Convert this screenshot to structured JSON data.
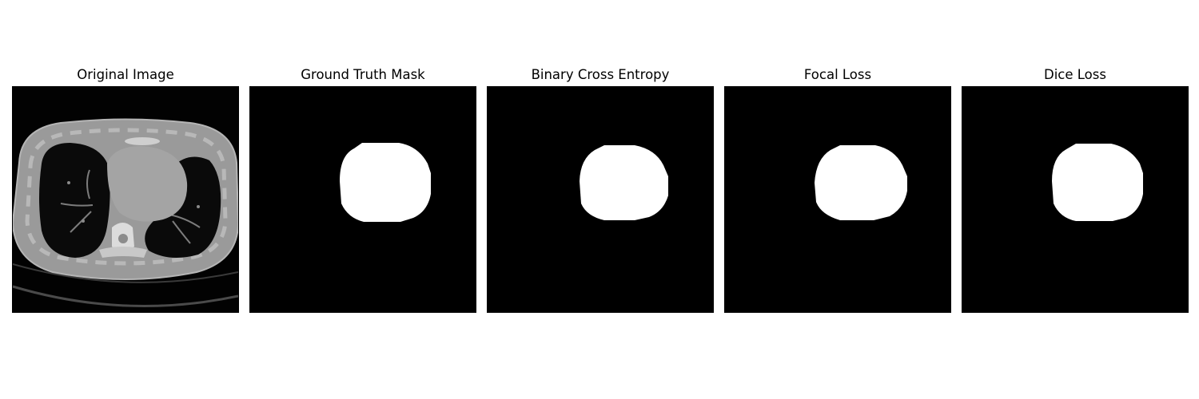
{
  "panels": [
    {
      "title": "Original Image",
      "content": "ct-scan"
    },
    {
      "title": "Ground Truth Mask",
      "content": "mask"
    },
    {
      "title": "Binary Cross Entropy",
      "content": "mask"
    },
    {
      "title": "Focal Loss",
      "content": "mask"
    },
    {
      "title": "Dice Loss",
      "content": "mask"
    }
  ],
  "colors": {
    "background": "#000000",
    "mask": "#ffffff",
    "tissue": "#9a9a9a",
    "bone": "#d8d8d8"
  }
}
